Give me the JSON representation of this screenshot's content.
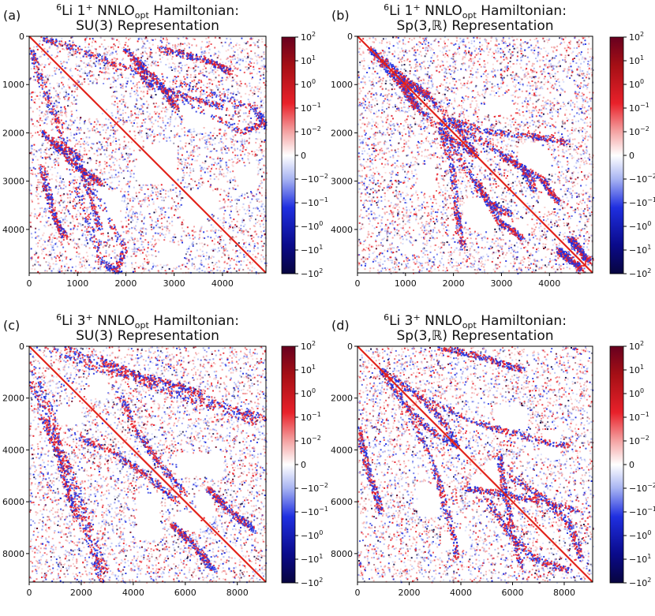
{
  "colors": {
    "positive_max": "#67001f",
    "positive_mid": "#e8212a",
    "zero": "#ffffff",
    "negative_mid": "#1f2fe0",
    "negative_max": "#08053f",
    "diagonal": "#e2231a",
    "positive_light": "#f2a6a6",
    "negative_light": "#a8b4f2"
  },
  "colorbar": {
    "labels": [
      "10^2",
      "10^1",
      "10^0",
      "10^-1",
      "10^-2",
      "0",
      "-10^-2",
      "-10^-1",
      "-10^0",
      "-10^1",
      "-10^2"
    ]
  },
  "chart_data": [
    {
      "id": "a",
      "type": "heatmap",
      "panel_label": "(a)",
      "title_line1": "6Li 1+ NNLOopt Hamiltonian:",
      "title_line2": "SU(3) Representation",
      "nucleus": "6",
      "nucleus_elem": "Li 1",
      "jp": "+",
      "ham": " NNLO",
      "sub": "opt",
      "ham_end": " Hamiltonian:",
      "rep": "SU(3) Representation",
      "matrix_size": 4900,
      "xlim": [
        0,
        4900
      ],
      "ylim": [
        4900,
        0
      ],
      "ticks": [
        0,
        1000,
        2000,
        3000,
        4000
      ],
      "colorscale": "symlog",
      "color_range": [
        -100,
        100
      ]
    },
    {
      "id": "b",
      "type": "heatmap",
      "panel_label": "(b)",
      "title_line1": "6Li 1+ NNLOopt Hamiltonian:",
      "title_line2": "Sp(3,R) Representation",
      "nucleus": "6",
      "nucleus_elem": "Li 1",
      "jp": "+",
      "ham": " NNLO",
      "sub": "opt",
      "ham_end": " Hamiltonian:",
      "rep": "Sp(3,ℝ) Representation",
      "matrix_size": 4900,
      "xlim": [
        0,
        4900
      ],
      "ylim": [
        4900,
        0
      ],
      "ticks": [
        0,
        1000,
        2000,
        3000,
        4000
      ],
      "colorscale": "symlog",
      "color_range": [
        -100,
        100
      ]
    },
    {
      "id": "c",
      "type": "heatmap",
      "panel_label": "(c)",
      "title_line1": "6Li 3+ NNLOopt Hamiltonian:",
      "title_line2": "SU(3) Representation",
      "nucleus": "6",
      "nucleus_elem": "Li 3",
      "jp": "+",
      "ham": " NNLO",
      "sub": "opt",
      "ham_end": " Hamiltonian:",
      "rep": "SU(3) Representation",
      "matrix_size": 9100,
      "xlim": [
        0,
        9100
      ],
      "ylim": [
        9100,
        0
      ],
      "ticks": [
        0,
        2000,
        4000,
        6000,
        8000
      ],
      "colorscale": "symlog",
      "color_range": [
        -100,
        100
      ]
    },
    {
      "id": "d",
      "type": "heatmap",
      "panel_label": "(d)",
      "title_line1": "6Li 3+ NNLOopt Hamiltonian:",
      "title_line2": "Sp(3,R) Representation",
      "nucleus": "6",
      "nucleus_elem": "Li 3",
      "jp": "+",
      "ham": " NNLO",
      "sub": "opt",
      "ham_end": " Hamiltonian:",
      "rep": "Sp(3,ℝ) Representation",
      "matrix_size": 9100,
      "xlim": [
        0,
        9100
      ],
      "ylim": [
        9100,
        0
      ],
      "ticks": [
        0,
        2000,
        4000,
        6000,
        8000
      ],
      "colorscale": "symlog",
      "color_range": [
        -100,
        100
      ]
    }
  ]
}
